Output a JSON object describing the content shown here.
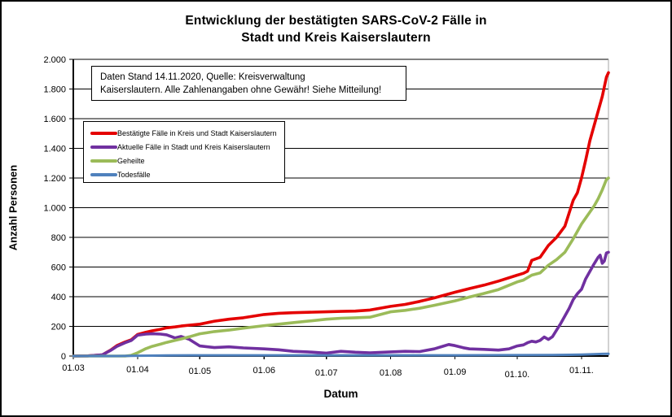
{
  "title": {
    "line1": "Entwicklung der bestätigten SARS-CoV-2 Fälle in",
    "line2": "Stadt und Kreis Kaiserslautern"
  },
  "annotation": {
    "line1": "Daten Stand 14.11.2020, Quelle: Kreisverwaltung",
    "line2": "Kaiserslautern. Alle Zahlenangaben ohne Gewähr! Siehe Mitteilung!"
  },
  "axes": {
    "y_title": "Anzahl Personen",
    "x_title": "Datum"
  },
  "legend": {
    "items": [
      {
        "label": "Bestätigte Fälle in Kreis und Stadt Kaiserslautern",
        "color": "#e40000"
      },
      {
        "label": "Aktuelle Fälle in Stadt und Kreis Kaiserslautern",
        "color": "#7030a0"
      },
      {
        "label": "Geheilte",
        "color": "#9bbb59"
      },
      {
        "label": "Todesfälle",
        "color": "#4f81bd"
      }
    ]
  },
  "chart_data": {
    "type": "line",
    "title": "Entwicklung der bestätigten SARS-CoV-2 Fälle in Stadt und Kreis Kaiserslautern",
    "xlabel": "Datum",
    "ylabel": "Anzahl Personen",
    "x_unit": "days since 01.03.2020, data through 14.11.2020",
    "x_range": [
      0,
      258
    ],
    "ylim": [
      0,
      2000
    ],
    "grid": true,
    "legend_position": "upper-left-inside",
    "y_ticks": [
      0,
      200,
      400,
      600,
      800,
      1000,
      1200,
      1400,
      1600,
      1800,
      2000
    ],
    "y_tick_labels": [
      "0",
      "200",
      "400",
      "600",
      "800",
      "1.000",
      "1.200",
      "1.400",
      "1.600",
      "1.800",
      "2.000"
    ],
    "x_tick_days": [
      0,
      31,
      61,
      92,
      122,
      153,
      184,
      214,
      245
    ],
    "x_tick_labels": [
      "01.03",
      "01.04",
      "01.05",
      "01.06",
      "01.07",
      "01.08",
      "01.09",
      "01.10.",
      "01.11."
    ],
    "series": [
      {
        "id": "bestaetigte-faelle",
        "name": "Bestätigte Fälle in Kreis und Stadt Kaiserslautern",
        "color": "#e40000",
        "points": [
          [
            0,
            0
          ],
          [
            7,
            1
          ],
          [
            14,
            8
          ],
          [
            18,
            40
          ],
          [
            21,
            70
          ],
          [
            25,
            95
          ],
          [
            28,
            110
          ],
          [
            31,
            145
          ],
          [
            35,
            160
          ],
          [
            38,
            170
          ],
          [
            42,
            180
          ],
          [
            45,
            190
          ],
          [
            49,
            196
          ],
          [
            52,
            202
          ],
          [
            56,
            208
          ],
          [
            61,
            215
          ],
          [
            68,
            235
          ],
          [
            75,
            248
          ],
          [
            82,
            258
          ],
          [
            92,
            280
          ],
          [
            99,
            288
          ],
          [
            106,
            292
          ],
          [
            113,
            295
          ],
          [
            122,
            298
          ],
          [
            129,
            301
          ],
          [
            136,
            303
          ],
          [
            143,
            310
          ],
          [
            153,
            335
          ],
          [
            160,
            348
          ],
          [
            167,
            368
          ],
          [
            174,
            392
          ],
          [
            184,
            430
          ],
          [
            191,
            455
          ],
          [
            198,
            478
          ],
          [
            205,
            505
          ],
          [
            214,
            545
          ],
          [
            217,
            558
          ],
          [
            219,
            572
          ],
          [
            221,
            645
          ],
          [
            225,
            665
          ],
          [
            229,
            745
          ],
          [
            233,
            800
          ],
          [
            237,
            875
          ],
          [
            241,
            1050
          ],
          [
            243,
            1100
          ],
          [
            245,
            1200
          ],
          [
            247,
            1320
          ],
          [
            249,
            1450
          ],
          [
            251,
            1550
          ],
          [
            253,
            1650
          ],
          [
            255,
            1750
          ],
          [
            257,
            1880
          ],
          [
            258,
            1910
          ]
        ]
      },
      {
        "id": "aktuelle-faelle",
        "name": "Aktuelle Fälle in Stadt und Kreis Kaiserslautern",
        "color": "#7030a0",
        "points": [
          [
            0,
            0
          ],
          [
            7,
            1
          ],
          [
            14,
            8
          ],
          [
            18,
            38
          ],
          [
            21,
            65
          ],
          [
            25,
            90
          ],
          [
            28,
            105
          ],
          [
            31,
            140
          ],
          [
            35,
            148
          ],
          [
            38,
            150
          ],
          [
            42,
            148
          ],
          [
            45,
            143
          ],
          [
            49,
            122
          ],
          [
            52,
            132
          ],
          [
            56,
            112
          ],
          [
            61,
            68
          ],
          [
            68,
            57
          ],
          [
            75,
            62
          ],
          [
            82,
            55
          ],
          [
            92,
            48
          ],
          [
            99,
            42
          ],
          [
            106,
            32
          ],
          [
            113,
            28
          ],
          [
            122,
            20
          ],
          [
            129,
            32
          ],
          [
            136,
            26
          ],
          [
            143,
            22
          ],
          [
            153,
            28
          ],
          [
            160,
            32
          ],
          [
            167,
            30
          ],
          [
            174,
            48
          ],
          [
            178,
            65
          ],
          [
            181,
            78
          ],
          [
            184,
            70
          ],
          [
            188,
            56
          ],
          [
            191,
            48
          ],
          [
            198,
            45
          ],
          [
            205,
            40
          ],
          [
            210,
            48
          ],
          [
            214,
            68
          ],
          [
            217,
            75
          ],
          [
            219,
            90
          ],
          [
            221,
            100
          ],
          [
            223,
            95
          ],
          [
            225,
            105
          ],
          [
            227,
            128
          ],
          [
            229,
            112
          ],
          [
            231,
            130
          ],
          [
            233,
            175
          ],
          [
            235,
            220
          ],
          [
            237,
            270
          ],
          [
            239,
            320
          ],
          [
            241,
            380
          ],
          [
            243,
            420
          ],
          [
            245,
            450
          ],
          [
            247,
            520
          ],
          [
            249,
            570
          ],
          [
            251,
            620
          ],
          [
            253,
            665
          ],
          [
            254,
            680
          ],
          [
            255,
            625
          ],
          [
            256,
            640
          ],
          [
            257,
            695
          ],
          [
            258,
            700
          ]
        ]
      },
      {
        "id": "geheilte",
        "name": "Geheilte",
        "color": "#9bbb59",
        "points": [
          [
            0,
            0
          ],
          [
            14,
            0
          ],
          [
            25,
            0
          ],
          [
            28,
            5
          ],
          [
            31,
            22
          ],
          [
            35,
            50
          ],
          [
            38,
            65
          ],
          [
            42,
            80
          ],
          [
            45,
            92
          ],
          [
            49,
            105
          ],
          [
            52,
            115
          ],
          [
            56,
            130
          ],
          [
            61,
            150
          ],
          [
            68,
            165
          ],
          [
            75,
            175
          ],
          [
            82,
            188
          ],
          [
            92,
            205
          ],
          [
            99,
            215
          ],
          [
            106,
            225
          ],
          [
            113,
            235
          ],
          [
            122,
            248
          ],
          [
            129,
            255
          ],
          [
            136,
            258
          ],
          [
            143,
            262
          ],
          [
            153,
            298
          ],
          [
            160,
            308
          ],
          [
            167,
            322
          ],
          [
            174,
            342
          ],
          [
            184,
            372
          ],
          [
            191,
            398
          ],
          [
            198,
            422
          ],
          [
            205,
            448
          ],
          [
            214,
            500
          ],
          [
            217,
            512
          ],
          [
            221,
            545
          ],
          [
            225,
            560
          ],
          [
            229,
            612
          ],
          [
            233,
            650
          ],
          [
            237,
            700
          ],
          [
            241,
            790
          ],
          [
            243,
            840
          ],
          [
            245,
            890
          ],
          [
            247,
            930
          ],
          [
            249,
            970
          ],
          [
            251,
            1010
          ],
          [
            253,
            1060
          ],
          [
            255,
            1120
          ],
          [
            257,
            1190
          ],
          [
            258,
            1200
          ]
        ]
      },
      {
        "id": "todesfaelle",
        "name": "Todesfälle",
        "color": "#4f81bd",
        "points": [
          [
            0,
            0
          ],
          [
            21,
            0
          ],
          [
            28,
            1
          ],
          [
            31,
            2
          ],
          [
            38,
            3
          ],
          [
            45,
            4
          ],
          [
            56,
            5
          ],
          [
            92,
            5
          ],
          [
            122,
            5
          ],
          [
            153,
            5
          ],
          [
            184,
            5
          ],
          [
            214,
            6
          ],
          [
            231,
            7
          ],
          [
            239,
            8
          ],
          [
            245,
            10
          ],
          [
            251,
            12
          ],
          [
            255,
            14
          ],
          [
            258,
            15
          ]
        ]
      }
    ]
  }
}
